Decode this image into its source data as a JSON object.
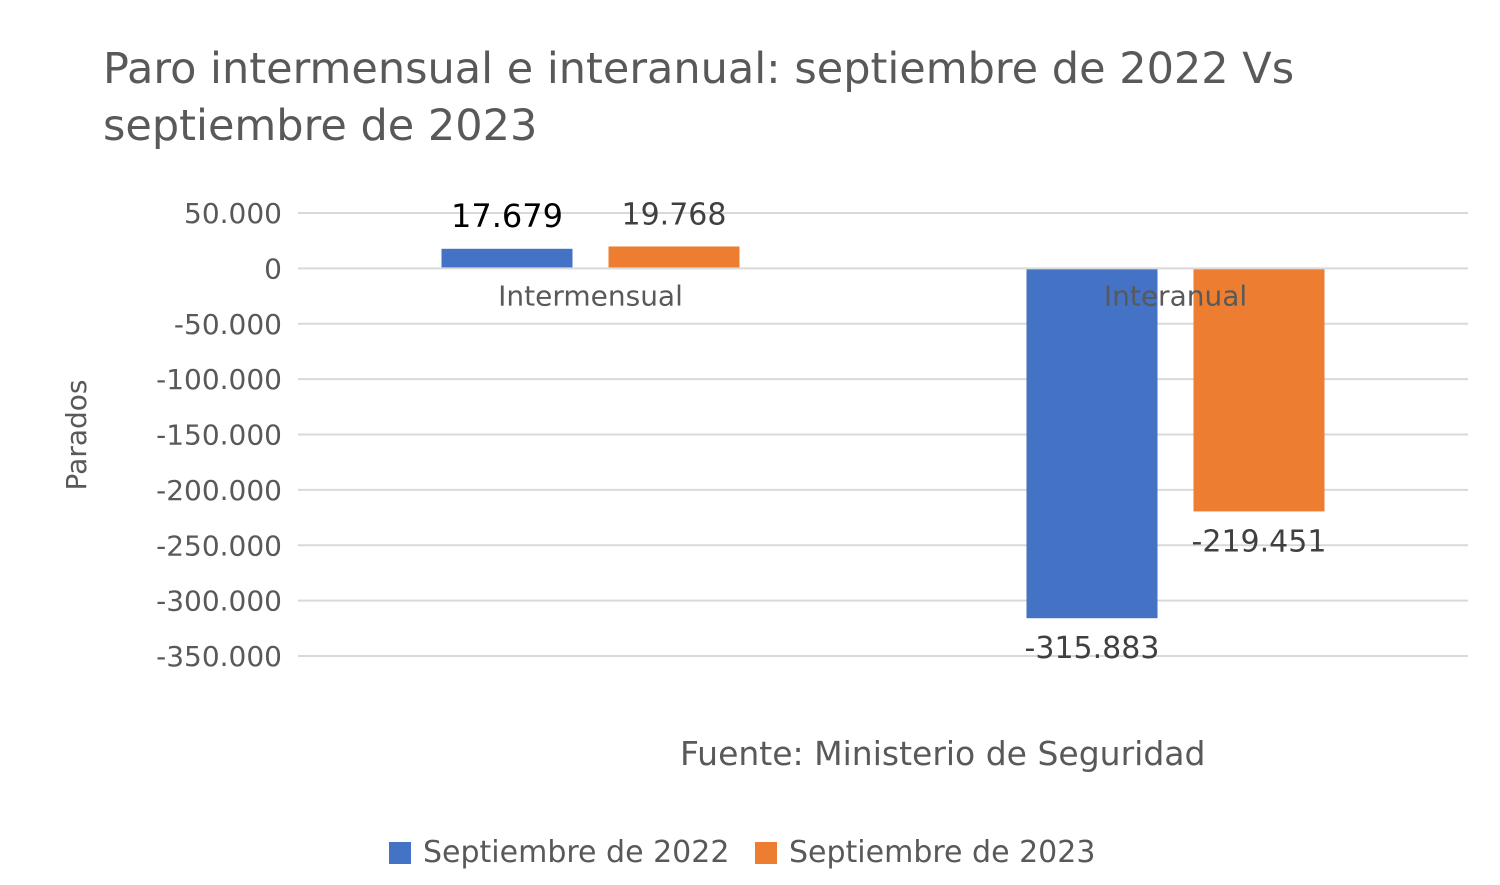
{
  "chart_data": {
    "type": "bar",
    "title_lines": [
      "Paro intermensual e interanual: septiembre de 2022 Vs",
      "septiembre de 2023"
    ],
    "categories": [
      "Intermensual",
      "Interanual"
    ],
    "series": [
      {
        "name": "Septiembre de 2022",
        "color": "#4472c4",
        "values": [
          17679,
          -315883
        ],
        "labels": [
          "17.679",
          "-315.883"
        ]
      },
      {
        "name": "Septiembre de 2023",
        "color": "#ed7d31",
        "values": [
          19768,
          -219451
        ],
        "labels": [
          "19.768",
          "-219.451"
        ]
      }
    ],
    "ylabel": "Parados",
    "ylim": [
      -350000,
      50000
    ],
    "yticks": [
      {
        "value": 50000,
        "label": "50.000"
      },
      {
        "value": 0,
        "label": "0"
      },
      {
        "value": -50000,
        "label": "-50.000"
      },
      {
        "value": -100000,
        "label": "-100.000"
      },
      {
        "value": -150000,
        "label": "-150.000"
      },
      {
        "value": -200000,
        "label": "-200.000"
      },
      {
        "value": -250000,
        "label": "-250.000"
      },
      {
        "value": -300000,
        "label": "-300.000"
      },
      {
        "value": -350000,
        "label": "-350.000"
      }
    ],
    "annotation": "Fuente: Ministerio de Seguridad",
    "legend_position": "bottom",
    "grid": true
  }
}
